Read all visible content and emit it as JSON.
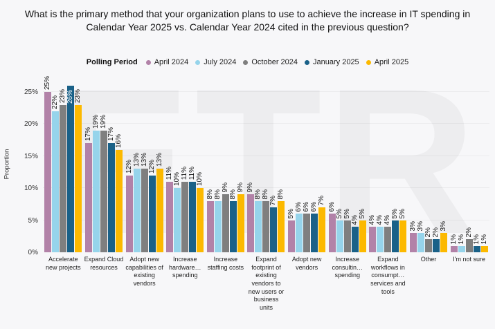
{
  "title": "What is the primary method that your organization plans to use to achieve the increase in IT spending in Calendar Year 2025 vs. Calendar Year 2024 cited in the previous question?",
  "watermark_text": "ETR",
  "chart_data": {
    "type": "bar",
    "title": "What is the primary method that your organization plans to use to achieve the increase in IT spending in Calendar Year 2025 vs. Calendar Year 2024 cited in the previous question?",
    "legend_title": "Polling Period",
    "legend_position": "top",
    "ylabel": "Proportion",
    "xlabel": "",
    "ylim": [
      0,
      27
    ],
    "yticks": [
      0,
      5,
      10,
      15,
      20,
      25
    ],
    "ytick_format": "{v}%",
    "grid": "horizontal-faint",
    "value_label_format": "{v}%",
    "value_label_rotation": -90,
    "categories": [
      "Accelerate new projects",
      "Expand Cloud resources",
      "Adopt new capabilities of existing vendors",
      "Increase hardware… spending",
      "Increase staffing costs",
      "Expand footprint of existing vendors to new users or business units",
      "Adopt new vendors",
      "Increase consultin… spending",
      "Expand workflows in consumpt… services and tools",
      "Other",
      "I'm not sure"
    ],
    "series": [
      {
        "name": "April 2024",
        "color": "#b282a8",
        "values": [
          25,
          17,
          12,
          11,
          8,
          9,
          5,
          6,
          4,
          3,
          1
        ]
      },
      {
        "name": "July 2024",
        "color": "#96d4eb",
        "values": [
          22,
          19,
          13,
          10,
          8,
          8,
          6,
          5,
          4,
          3,
          1
        ]
      },
      {
        "name": "October 2024",
        "color": "#7f7f7f",
        "values": [
          23,
          19,
          13,
          11,
          9,
          8,
          6,
          5,
          4,
          2,
          2
        ]
      },
      {
        "name": "January 2025",
        "color": "#1a6188",
        "values": [
          26,
          17,
          12,
          11,
          8,
          7,
          6,
          4,
          5,
          2,
          1
        ]
      },
      {
        "name": "April 2025",
        "color": "#fcb900",
        "values": [
          23,
          16,
          13,
          10,
          9,
          8,
          7,
          5,
          5,
          3,
          1
        ]
      }
    ]
  },
  "colors": {
    "background": "#f7f7f9",
    "watermark": "#ededef",
    "title_text": "#111111",
    "inside_label_text": "#ffffff"
  }
}
